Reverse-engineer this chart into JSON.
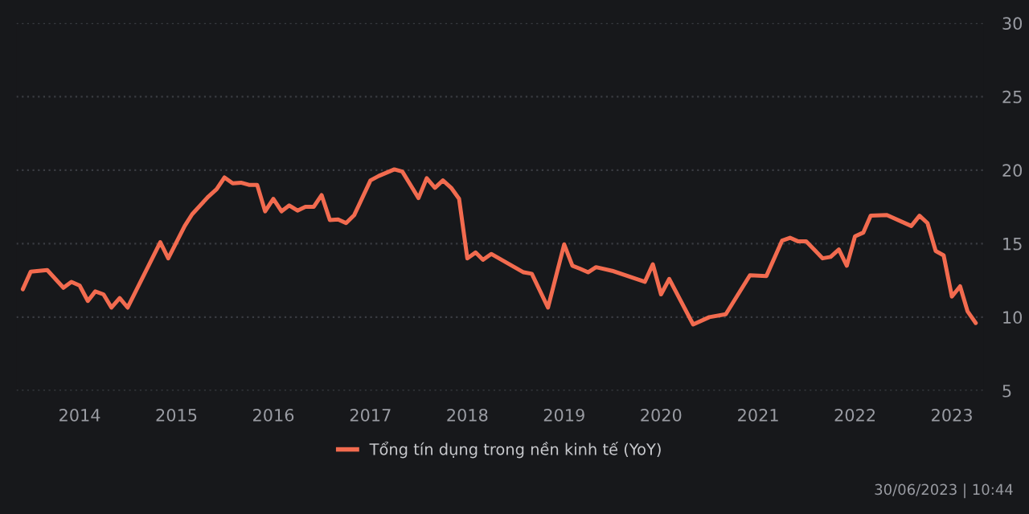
{
  "chart_data": {
    "type": "line",
    "x": [
      "2013-06",
      "2013-07",
      "2013-09",
      "2013-11",
      "2013-12",
      "2014-01",
      "2014-02",
      "2014-03",
      "2014-04",
      "2014-05",
      "2014-06",
      "2014-07",
      "2014-11",
      "2014-12",
      "2015-02",
      "2015-03",
      "2015-05",
      "2015-06",
      "2015-07",
      "2015-08",
      "2015-09",
      "2015-10",
      "2015-11",
      "2015-12",
      "2016-01",
      "2016-02",
      "2016-03",
      "2016-04",
      "2016-05",
      "2016-06",
      "2016-07",
      "2016-08",
      "2016-09",
      "2016-10",
      "2016-11",
      "2017-01",
      "2017-02",
      "2017-04",
      "2017-05",
      "2017-07",
      "2017-08",
      "2017-09",
      "2017-10",
      "2017-11",
      "2017-12",
      "2018-01",
      "2018-02",
      "2018-03",
      "2018-04",
      "2018-08",
      "2018-09",
      "2018-11",
      "2019-01",
      "2019-02",
      "2019-03",
      "2019-04",
      "2019-05",
      "2019-07",
      "2019-11",
      "2019-12",
      "2020-01",
      "2020-02",
      "2020-05",
      "2020-07",
      "2020-09",
      "2020-12",
      "2021-02",
      "2021-04",
      "2021-05",
      "2021-06",
      "2021-07",
      "2021-09",
      "2021-10",
      "2021-11",
      "2021-12",
      "2022-01",
      "2022-02",
      "2022-03",
      "2022-05",
      "2022-08",
      "2022-09",
      "2022-10",
      "2022-11",
      "2022-12",
      "2023-01",
      "2023-02",
      "2023-03",
      "2023-04"
    ],
    "series": [
      {
        "name": "Tổng tín dụng trong nền kinh tế (YoY)",
        "color": "#f26b4f",
        "values": [
          11.9,
          13.1,
          13.2,
          12.0,
          12.4,
          12.15,
          11.1,
          11.75,
          11.55,
          10.65,
          11.3,
          10.65,
          15.1,
          14.0,
          16.2,
          17.0,
          18.2,
          18.7,
          19.5,
          19.1,
          19.15,
          19.0,
          19.0,
          17.2,
          18.05,
          17.2,
          17.6,
          17.25,
          17.5,
          17.5,
          18.3,
          16.6,
          16.65,
          16.4,
          16.95,
          19.3,
          19.6,
          20.05,
          19.9,
          18.1,
          19.45,
          18.8,
          19.3,
          18.8,
          18.05,
          14.0,
          14.4,
          13.9,
          14.3,
          13.05,
          12.95,
          10.65,
          14.95,
          13.5,
          13.3,
          13.05,
          13.4,
          13.15,
          12.4,
          13.6,
          11.55,
          12.6,
          9.5,
          10.0,
          10.2,
          12.85,
          12.8,
          15.2,
          15.4,
          15.15,
          15.15,
          14.0,
          14.1,
          14.6,
          13.5,
          15.5,
          15.75,
          16.9,
          16.95,
          16.2,
          16.9,
          16.4,
          14.5,
          14.2,
          11.4,
          12.1,
          10.4,
          9.6
        ]
      }
    ],
    "xlim": [
      "2013-05-08",
      "2023-05-01"
    ],
    "xticks": [
      {
        "value": "2014-01-01",
        "label": "2014"
      },
      {
        "value": "2015-01-01",
        "label": "2015"
      },
      {
        "value": "2016-01-01",
        "label": "2016"
      },
      {
        "value": "2017-01-01",
        "label": "2017"
      },
      {
        "value": "2018-01-01",
        "label": "2018"
      },
      {
        "value": "2019-01-01",
        "label": "2019"
      },
      {
        "value": "2020-01-01",
        "label": "2020"
      },
      {
        "value": "2021-01-01",
        "label": "2021"
      },
      {
        "value": "2022-01-01",
        "label": "2022"
      },
      {
        "value": "2023-01-01",
        "label": "2023"
      }
    ],
    "ylim": [
      5,
      30
    ],
    "yticks": [
      5,
      10,
      15,
      20,
      25,
      30
    ],
    "grid": "y",
    "legend": "bottom",
    "line_style": "solid",
    "annotations": [
      "30/06/2023 | 10:44"
    ]
  }
}
